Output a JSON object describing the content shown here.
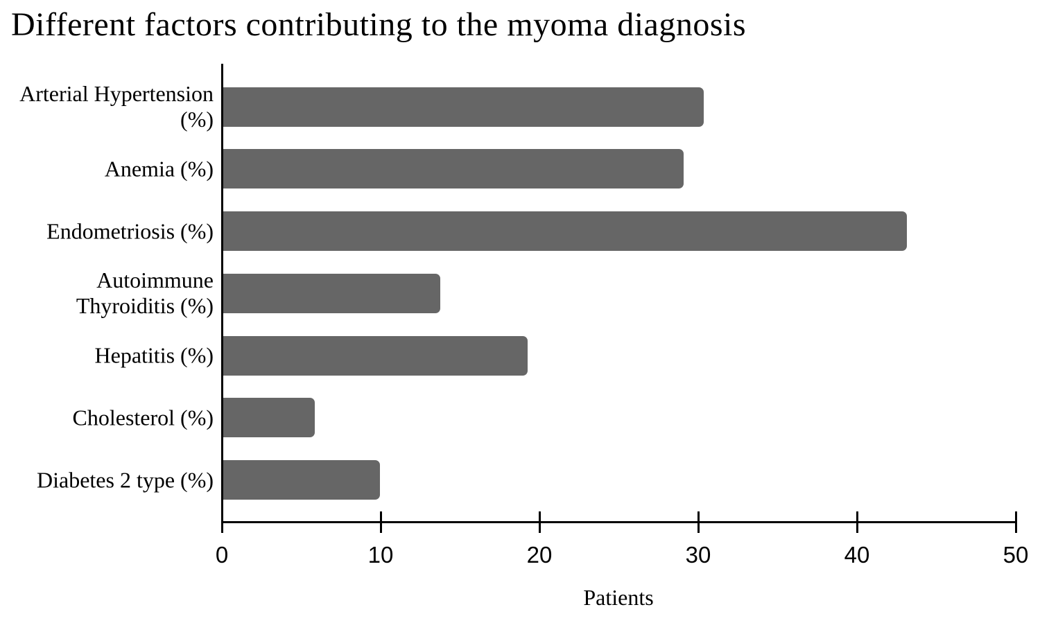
{
  "chart_data": {
    "type": "bar",
    "orientation": "horizontal",
    "title": "Different factors contributing to the myoma diagnosis",
    "xlabel": "Patients",
    "ylabel": "",
    "categories": [
      "Arterial Hypertension (%)",
      "Anemia (%)",
      "Endometriosis (%)",
      "Autoimmune Thyroiditis (%)",
      "Hepatitis (%)",
      "Cholesterol (%)",
      "Diabetes 2 type (%)"
    ],
    "categories_display": [
      "Arterial Hypertension\n(%)",
      "Anemia (%)",
      "Endometriosis (%)",
      "Autoimmune\nThyroiditis (%)",
      "Hepatitis (%)",
      "Cholesterol (%)",
      "Diabetes 2 type (%)"
    ],
    "values": [
      30.3,
      29,
      43.1,
      13.7,
      19.2,
      5.8,
      9.9
    ],
    "xlim": [
      0,
      50
    ],
    "xticks": [
      0,
      10,
      20,
      30,
      40,
      50
    ],
    "grid": false,
    "legend": false,
    "bar_color": "#666666",
    "axis_color": "#000000",
    "background_color": "#ffffff",
    "text_color": "#000000"
  }
}
